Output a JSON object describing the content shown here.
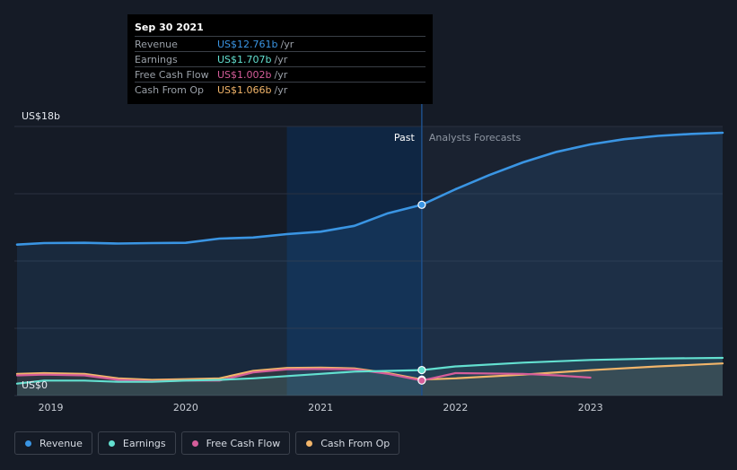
{
  "chart_data": {
    "type": "area",
    "y_unit_label_top": "US$18b",
    "y_unit_label_bottom": "US$0",
    "ylim": [
      0,
      18
    ],
    "xlim": [
      2018.73,
      2023.98
    ],
    "x_ticks": [
      {
        "value": 2019,
        "label": "2019"
      },
      {
        "value": 2020,
        "label": "2020"
      },
      {
        "value": 2021,
        "label": "2021"
      },
      {
        "value": 2022,
        "label": "2022"
      },
      {
        "value": 2023,
        "label": "2023"
      }
    ],
    "grid": true,
    "divider_x": 2021.75,
    "highlight_start_x": 2020.75,
    "past_label": "Past",
    "forecast_label": "Analysts Forecasts",
    "series": [
      {
        "name": "Revenue",
        "color": "#3a95e3",
        "fill": true,
        "marker_x": 2021.75,
        "marker_y": 12.761,
        "points": [
          [
            2018.75,
            10.1
          ],
          [
            2018.95,
            10.2
          ],
          [
            2019.25,
            10.22
          ],
          [
            2019.5,
            10.17
          ],
          [
            2019.75,
            10.2
          ],
          [
            2020.0,
            10.22
          ],
          [
            2020.25,
            10.5
          ],
          [
            2020.5,
            10.57
          ],
          [
            2020.75,
            10.8
          ],
          [
            2021.0,
            10.96
          ],
          [
            2021.25,
            11.35
          ],
          [
            2021.5,
            12.2
          ],
          [
            2021.75,
            12.761
          ],
          [
            2022.0,
            13.8
          ],
          [
            2022.25,
            14.75
          ],
          [
            2022.5,
            15.6
          ],
          [
            2022.75,
            16.3
          ],
          [
            2023.0,
            16.8
          ],
          [
            2023.25,
            17.15
          ],
          [
            2023.5,
            17.37
          ],
          [
            2023.75,
            17.5
          ],
          [
            2023.98,
            17.58
          ]
        ]
      },
      {
        "name": "Earnings",
        "color": "#63e0d0",
        "fill": true,
        "marker_x": 2021.75,
        "marker_y": 1.707,
        "points": [
          [
            2018.75,
            0.8
          ],
          [
            2018.95,
            1.0
          ],
          [
            2019.25,
            1.0
          ],
          [
            2019.5,
            0.92
          ],
          [
            2019.75,
            0.92
          ],
          [
            2020.0,
            1.0
          ],
          [
            2020.25,
            1.05
          ],
          [
            2020.5,
            1.15
          ],
          [
            2020.75,
            1.3
          ],
          [
            2021.0,
            1.45
          ],
          [
            2021.25,
            1.6
          ],
          [
            2021.5,
            1.65
          ],
          [
            2021.75,
            1.707
          ],
          [
            2022.0,
            1.95
          ],
          [
            2022.5,
            2.2
          ],
          [
            2023.0,
            2.38
          ],
          [
            2023.5,
            2.48
          ],
          [
            2023.98,
            2.52
          ]
        ]
      },
      {
        "name": "Free Cash Flow",
        "color": "#d55d9a",
        "fill": false,
        "marker_x": 2021.75,
        "marker_y": 1.002,
        "points": [
          [
            2018.75,
            1.35
          ],
          [
            2018.95,
            1.4
          ],
          [
            2019.25,
            1.35
          ],
          [
            2019.5,
            1.05
          ],
          [
            2019.75,
            0.95
          ],
          [
            2020.0,
            1.0
          ],
          [
            2020.25,
            1.0
          ],
          [
            2020.5,
            1.55
          ],
          [
            2020.75,
            1.75
          ],
          [
            2021.0,
            1.78
          ],
          [
            2021.25,
            1.75
          ],
          [
            2021.5,
            1.45
          ],
          [
            2021.75,
            1.002
          ],
          [
            2022.0,
            1.5
          ],
          [
            2022.5,
            1.45
          ],
          [
            2022.75,
            1.35
          ],
          [
            2023.0,
            1.2
          ]
        ]
      },
      {
        "name": "Cash From Op",
        "color": "#f2b56a",
        "fill": true,
        "marker_x": 2021.75,
        "marker_y": 1.066,
        "points": [
          [
            2018.75,
            1.45
          ],
          [
            2018.95,
            1.5
          ],
          [
            2019.25,
            1.45
          ],
          [
            2019.5,
            1.15
          ],
          [
            2019.75,
            1.05
          ],
          [
            2020.0,
            1.1
          ],
          [
            2020.25,
            1.15
          ],
          [
            2020.5,
            1.65
          ],
          [
            2020.75,
            1.85
          ],
          [
            2021.0,
            1.87
          ],
          [
            2021.25,
            1.82
          ],
          [
            2021.5,
            1.5
          ],
          [
            2021.75,
            1.066
          ],
          [
            2022.0,
            1.15
          ],
          [
            2022.5,
            1.4
          ],
          [
            2023.0,
            1.7
          ],
          [
            2023.5,
            1.95
          ],
          [
            2023.98,
            2.15
          ]
        ]
      }
    ]
  },
  "tooltip": {
    "date": "Sep 30 2021",
    "rows": [
      {
        "label": "Revenue",
        "value": "US$12.761b",
        "unit": "/yr",
        "color": "#3a95e3"
      },
      {
        "label": "Earnings",
        "value": "US$1.707b",
        "unit": "/yr",
        "color": "#63e0d0"
      },
      {
        "label": "Free Cash Flow",
        "value": "US$1.002b",
        "unit": "/yr",
        "color": "#d55d9a"
      },
      {
        "label": "Cash From Op",
        "value": "US$1.066b",
        "unit": "/yr",
        "color": "#f2b56a"
      }
    ]
  },
  "legend": [
    {
      "label": "Revenue",
      "color": "#3a95e3"
    },
    {
      "label": "Earnings",
      "color": "#63e0d0"
    },
    {
      "label": "Free Cash Flow",
      "color": "#d55d9a"
    },
    {
      "label": "Cash From Op",
      "color": "#f2b56a"
    }
  ]
}
